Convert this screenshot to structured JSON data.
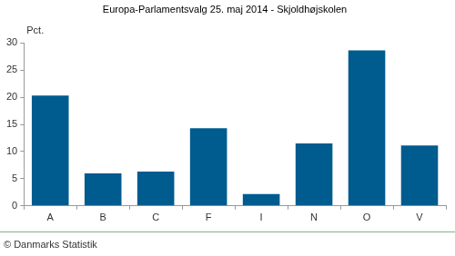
{
  "chart_data": {
    "type": "bar",
    "title": "Europa-Parlamentsvalg 25. maj 2014 - Skjoldhøjskolen",
    "ylabel": "Pct.",
    "source": "© Danmarks Statistik",
    "categories": [
      "A",
      "B",
      "C",
      "F",
      "I",
      "N",
      "O",
      "V"
    ],
    "values": [
      20.3,
      6.0,
      6.3,
      14.3,
      2.2,
      11.5,
      28.6,
      11.1
    ],
    "color": "#005b8f",
    "ylim": [
      0,
      30
    ],
    "yticks": [
      0,
      5,
      10,
      15,
      20,
      25,
      30
    ],
    "grid": false
  }
}
